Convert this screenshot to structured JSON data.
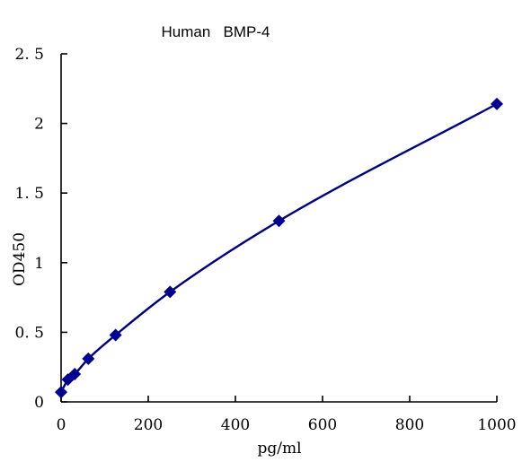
{
  "chart_data": {
    "type": "scatter",
    "title": "Human   BMP-4",
    "xlabel": "pg/ml",
    "ylabel": "OD450",
    "xlim": [
      0,
      1000
    ],
    "ylim": [
      0,
      2.5
    ],
    "x_ticks": [
      0,
      200,
      400,
      600,
      800,
      1000
    ],
    "x_tick_labels": [
      "0",
      "200",
      "400",
      "600",
      "800",
      "1000"
    ],
    "y_ticks": [
      0,
      0.5,
      1,
      1.5,
      2,
      2.5
    ],
    "y_tick_labels": [
      "0",
      "0. 5",
      "1",
      "1. 5",
      "2",
      "2. 5"
    ],
    "grid": false,
    "series": [
      {
        "marker": "diamond",
        "color": "#000090",
        "fit": "smooth-curve",
        "x": [
          0,
          15.6,
          31.25,
          62.5,
          125,
          250,
          500,
          1000
        ],
        "y": [
          0.07,
          0.16,
          0.2,
          0.31,
          0.48,
          0.79,
          1.3,
          2.14
        ]
      }
    ]
  }
}
